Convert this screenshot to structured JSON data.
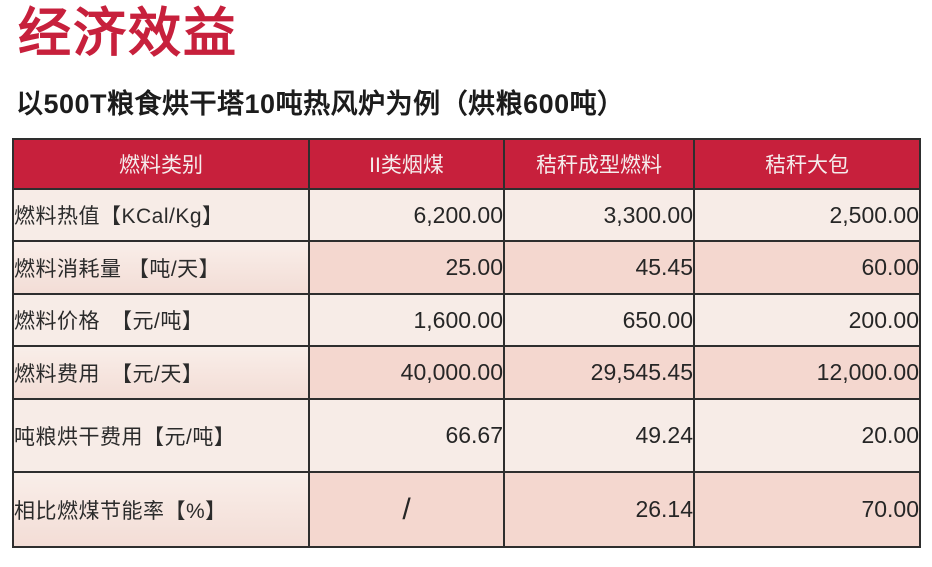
{
  "page": {
    "title": "经济效益",
    "subtitle": "以500T粮食烘干塔10吨热风炉为例（烘粮600吨）"
  },
  "table": {
    "headers": [
      "燃料类别",
      "II类烟煤",
      "秸秆成型燃料",
      "秸秆大包"
    ],
    "rows": [
      {
        "label": "燃料热值【KCal/Kg】",
        "values": [
          "6,200.00",
          "3,300.00",
          "2,500.00"
        ]
      },
      {
        "label": "燃料消耗量 【吨/天】",
        "values": [
          "25.00",
          "45.45",
          "60.00"
        ]
      },
      {
        "label": "燃料价格　【元/吨】",
        "values": [
          "1,600.00",
          "650.00",
          "200.00"
        ]
      },
      {
        "label": "燃料费用　【元/天】",
        "values": [
          "40,000.00",
          "29,545.45",
          "12,000.00"
        ]
      },
      {
        "label": "吨粮烘干费用【元/吨】",
        "values": [
          "66.67",
          "49.24",
          "20.00"
        ]
      },
      {
        "label": "相比燃煤节能率【%】",
        "values": [
          "/",
          "26.14",
          "70.00"
        ]
      }
    ],
    "colors": {
      "header_bg": "#C7203C",
      "row_light": "#F7ECE7",
      "row_pink": "#F4D7CF",
      "border": "#2E2E2E"
    }
  }
}
